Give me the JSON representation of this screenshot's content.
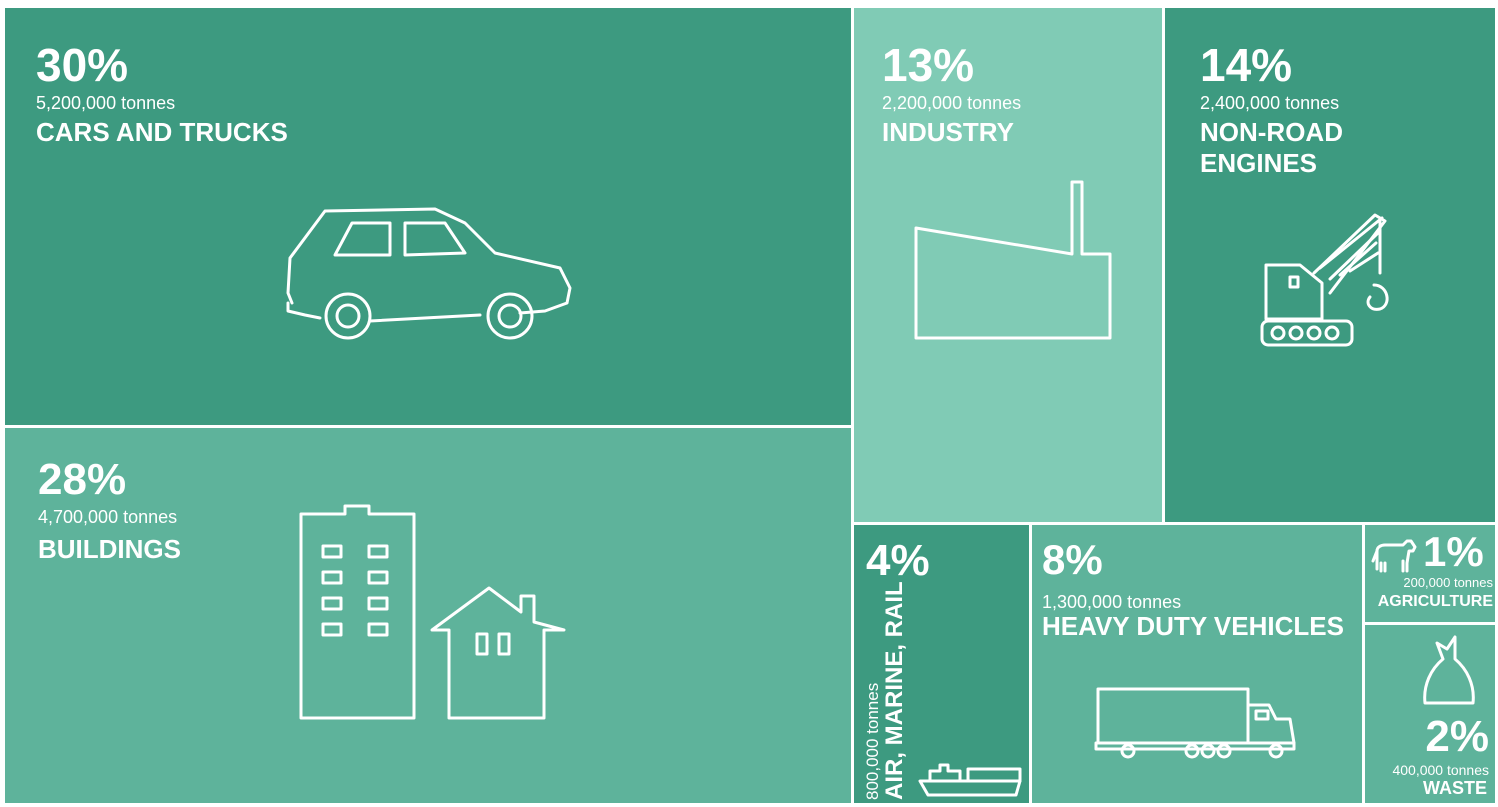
{
  "chart_data": {
    "type": "treemap",
    "unit": "tonnes",
    "colors": {
      "dark": "#3d9a80",
      "medium": "#5eb39b",
      "light": "#80cbb5",
      "border": "#ffffff"
    },
    "items": [
      {
        "key": "cars",
        "percent": "30%",
        "tonnes": "5,200,000 tonnes",
        "label": "CARS AND TRUCKS",
        "value": 5200000,
        "share": 30,
        "color": "#3d9a80",
        "icon": "car-icon"
      },
      {
        "key": "buildings",
        "percent": "28%",
        "tonnes": "4,700,000 tonnes",
        "label": "BUILDINGS",
        "value": 4700000,
        "share": 28,
        "color": "#5eb39b",
        "icon": "buildings-icon"
      },
      {
        "key": "industry",
        "percent": "13%",
        "tonnes": "2,200,000 tonnes",
        "label": "INDUSTRY",
        "value": 2200000,
        "share": 13,
        "color": "#80cbb5",
        "icon": "factory-icon"
      },
      {
        "key": "nonroad",
        "percent": "14%",
        "tonnes": "2,400,000 tonnes",
        "label": "NON-ROAD ENGINES",
        "value": 2400000,
        "share": 14,
        "color": "#3d9a80",
        "icon": "crane-icon"
      },
      {
        "key": "air",
        "percent": "4%",
        "tonnes": "800,000 tonnes",
        "label": "AIR, MARINE, RAIL",
        "value": 800000,
        "share": 4,
        "color": "#3d9a80",
        "icon": "ship-icon"
      },
      {
        "key": "heavy",
        "percent": "8%",
        "tonnes": "1,300,000 tonnes",
        "label": "HEAVY DUTY VEHICLES",
        "value": 1300000,
        "share": 8,
        "color": "#5eb39b",
        "icon": "truck-icon"
      },
      {
        "key": "agri",
        "percent": "1%",
        "tonnes": "200,000 tonnes",
        "label": "AGRICULTURE",
        "value": 200000,
        "share": 1,
        "color": "#5eb39b",
        "icon": "cow-icon"
      },
      {
        "key": "waste",
        "percent": "2%",
        "tonnes": "400,000 tonnes",
        "label": "WASTE",
        "value": 400000,
        "share": 2,
        "color": "#5eb39b",
        "icon": "garbage-bag-icon"
      }
    ]
  }
}
